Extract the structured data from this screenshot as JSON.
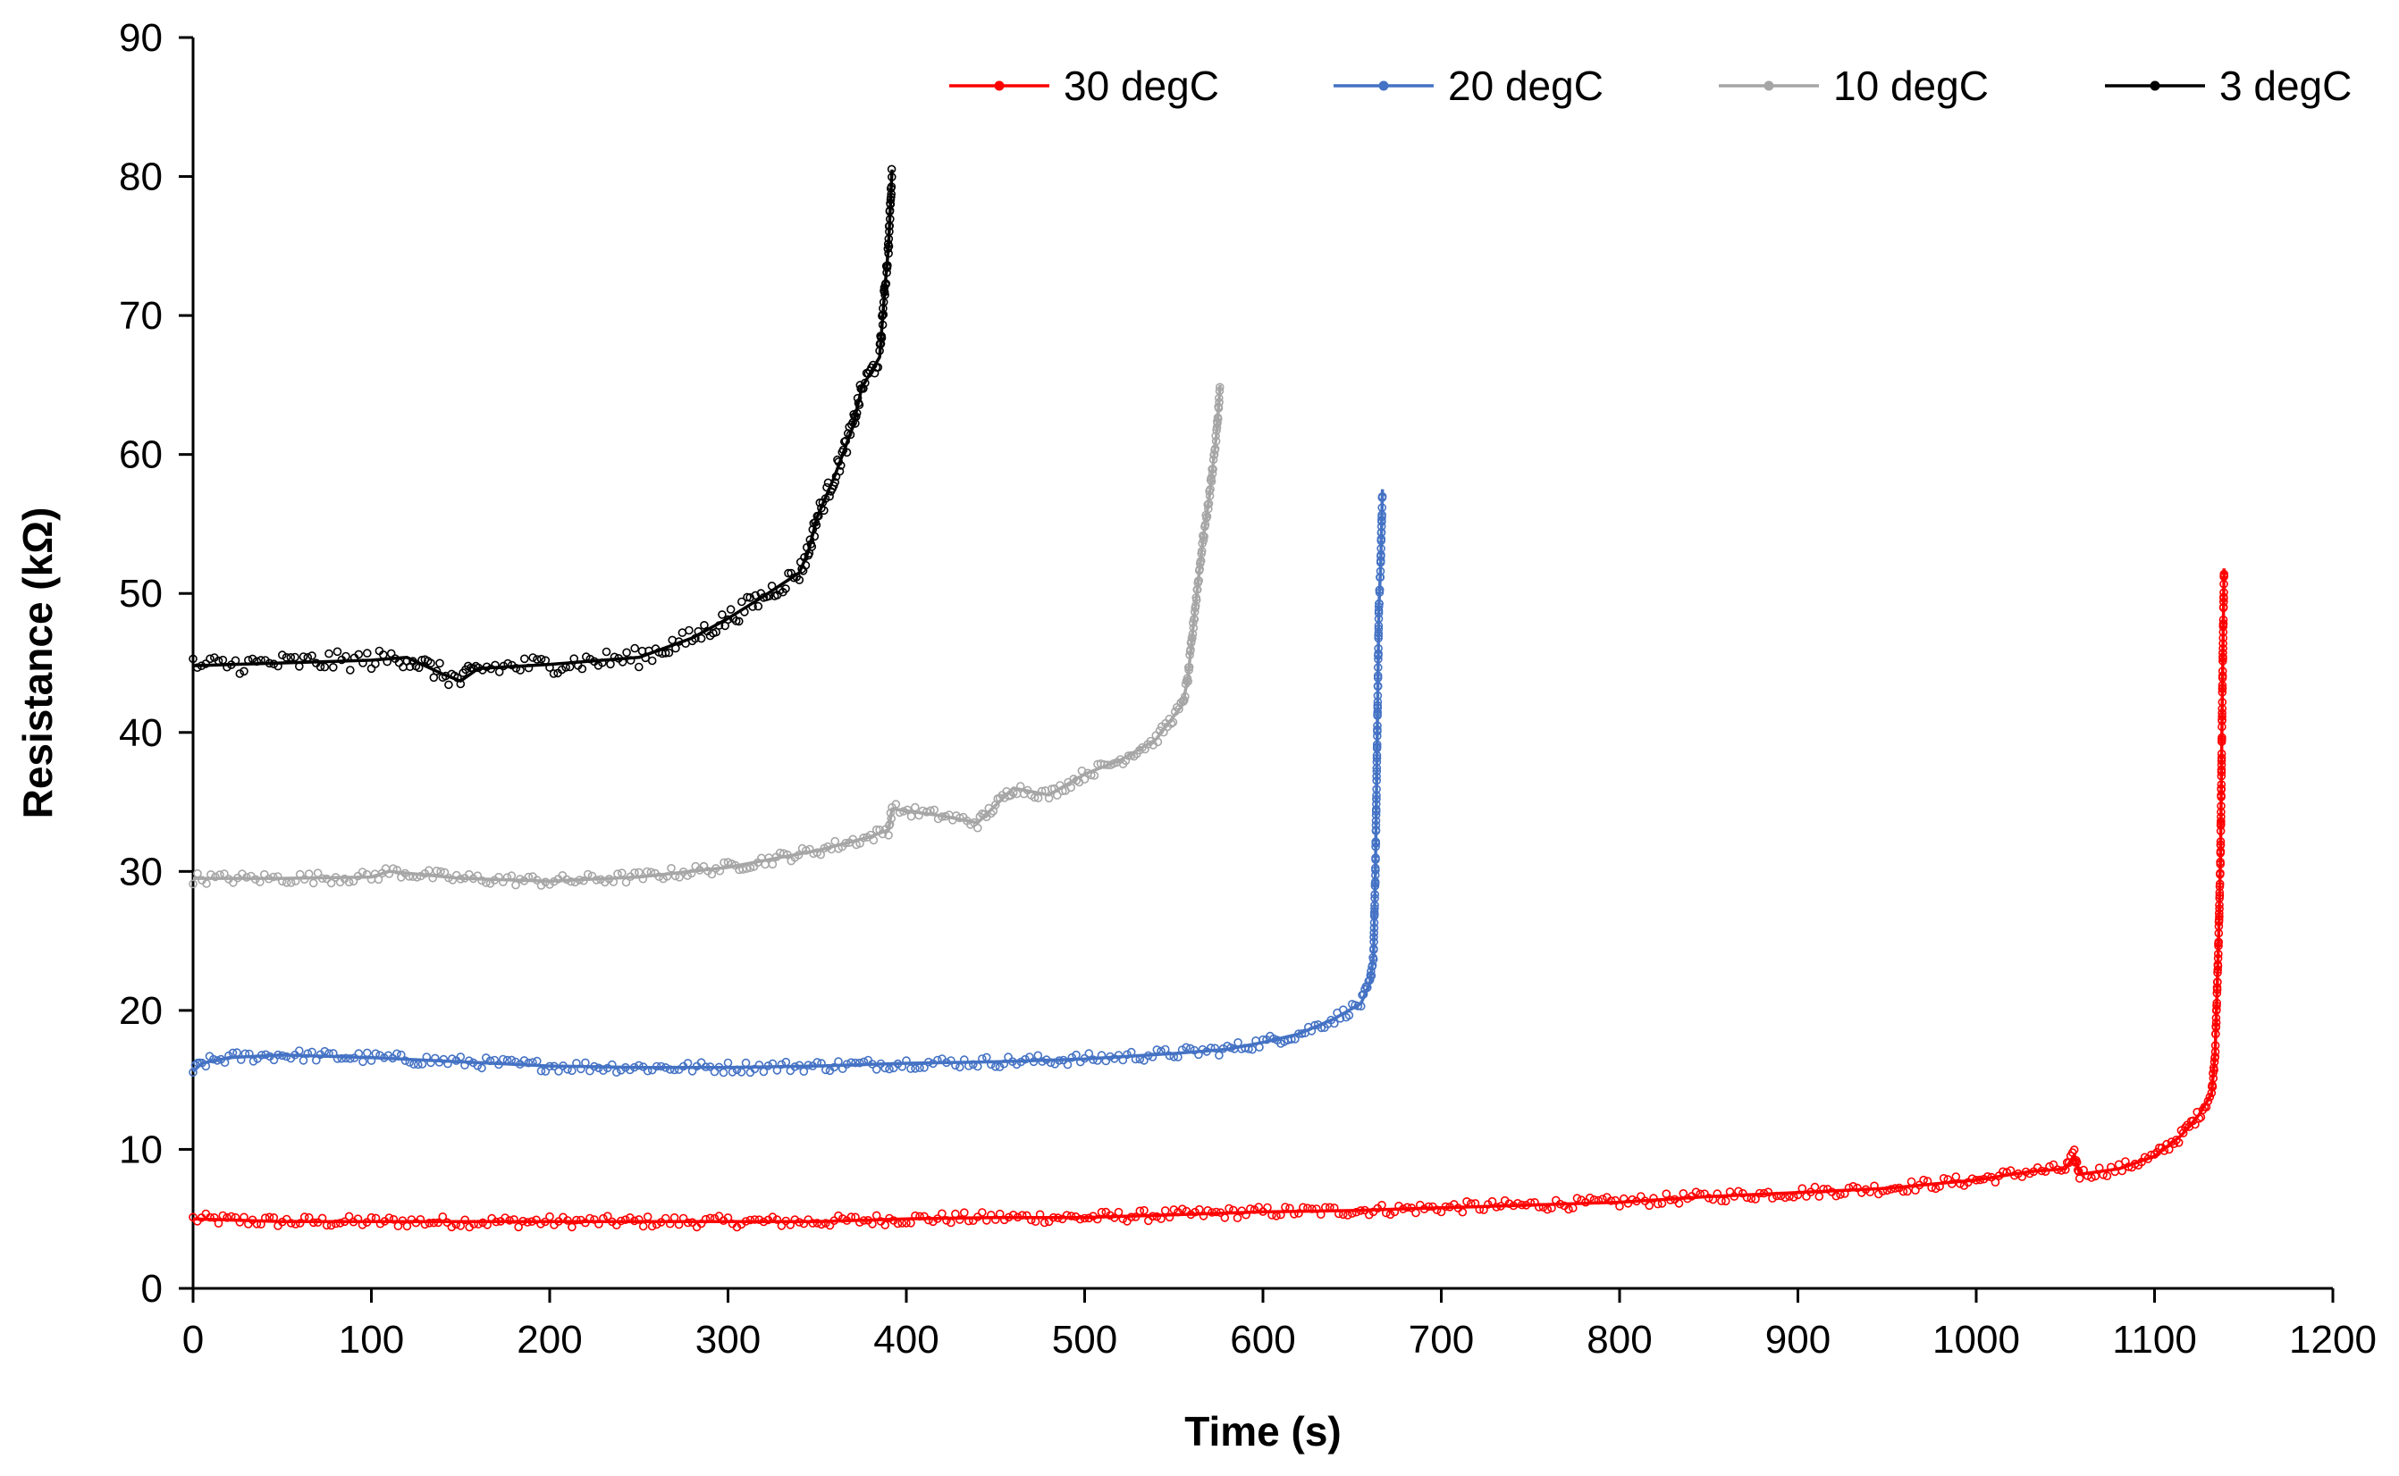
{
  "chart_data": {
    "type": "line",
    "title": "",
    "xlabel": "Time (s)",
    "ylabel": "Resistance (kΩ)",
    "xlim": [
      0,
      1200
    ],
    "ylim": [
      0,
      90
    ],
    "x_ticks": [
      "0",
      "100",
      "200",
      "300",
      "400",
      "500",
      "600",
      "700",
      "800",
      "900",
      "1000",
      "1100",
      "1200"
    ],
    "y_ticks": [
      "0",
      "10",
      "20",
      "30",
      "40",
      "50",
      "60",
      "70",
      "80",
      "90"
    ],
    "grid": false,
    "legend_position": "top-right",
    "series": [
      {
        "name": "30 degC",
        "color": "#ff0000",
        "points": [
          [
            0,
            5.0
          ],
          [
            50,
            4.8
          ],
          [
            100,
            4.8
          ],
          [
            150,
            4.8
          ],
          [
            200,
            4.8
          ],
          [
            250,
            4.8
          ],
          [
            300,
            4.8
          ],
          [
            350,
            4.8
          ],
          [
            400,
            5.0
          ],
          [
            450,
            5.1
          ],
          [
            500,
            5.1
          ],
          [
            550,
            5.3
          ],
          [
            600,
            5.5
          ],
          [
            650,
            5.6
          ],
          [
            700,
            5.8
          ],
          [
            750,
            6.0
          ],
          [
            800,
            6.2
          ],
          [
            850,
            6.6
          ],
          [
            900,
            6.9
          ],
          [
            950,
            7.2
          ],
          [
            1000,
            7.8
          ],
          [
            1030,
            8.4
          ],
          [
            1050,
            8.6
          ],
          [
            1055,
            9.6
          ],
          [
            1058,
            8.2
          ],
          [
            1080,
            8.6
          ],
          [
            1100,
            9.5
          ],
          [
            1115,
            11.0
          ],
          [
            1125,
            12.5
          ],
          [
            1132,
            14.0
          ],
          [
            1134,
            17.0
          ],
          [
            1135,
            21.0
          ],
          [
            1136,
            25.5
          ],
          [
            1137,
            31.0
          ],
          [
            1138,
            42.5
          ],
          [
            1139,
            51.8
          ]
        ]
      },
      {
        "name": "20 degC",
        "color": "#4472c4",
        "points": [
          [
            0,
            15.6
          ],
          [
            5,
            16.2
          ],
          [
            20,
            16.6
          ],
          [
            50,
            16.8
          ],
          [
            100,
            16.6
          ],
          [
            150,
            16.3
          ],
          [
            200,
            16.0
          ],
          [
            250,
            15.9
          ],
          [
            300,
            15.9
          ],
          [
            350,
            16.0
          ],
          [
            400,
            16.2
          ],
          [
            450,
            16.3
          ],
          [
            500,
            16.5
          ],
          [
            550,
            16.9
          ],
          [
            580,
            17.2
          ],
          [
            600,
            17.7
          ],
          [
            620,
            18.3
          ],
          [
            640,
            19.4
          ],
          [
            655,
            20.5
          ],
          [
            660,
            22.0
          ],
          [
            662,
            24.0
          ],
          [
            663,
            29.5
          ],
          [
            664,
            39.0
          ],
          [
            665,
            49.0
          ],
          [
            666,
            52.0
          ],
          [
            667,
            57.5
          ]
        ]
      },
      {
        "name": "10 degC",
        "color": "#a6a6a6",
        "points": [
          [
            0,
            29.5
          ],
          [
            50,
            29.5
          ],
          [
            100,
            29.6
          ],
          [
            110,
            30.0
          ],
          [
            150,
            29.5
          ],
          [
            200,
            29.3
          ],
          [
            250,
            29.6
          ],
          [
            300,
            30.3
          ],
          [
            350,
            31.5
          ],
          [
            380,
            32.5
          ],
          [
            390,
            33.0
          ],
          [
            392,
            34.5
          ],
          [
            420,
            34.0
          ],
          [
            440,
            33.5
          ],
          [
            460,
            36.0
          ],
          [
            480,
            35.5
          ],
          [
            500,
            37.0
          ],
          [
            520,
            38.0
          ],
          [
            540,
            39.5
          ],
          [
            555,
            42.0
          ],
          [
            558,
            44.0
          ],
          [
            562,
            49.0
          ],
          [
            566,
            53.5
          ],
          [
            570,
            57.0
          ],
          [
            574,
            61.5
          ],
          [
            576,
            65.0
          ]
        ]
      },
      {
        "name": "3 degC",
        "color": "#000000",
        "points": [
          [
            0,
            44.8
          ],
          [
            50,
            45.0
          ],
          [
            100,
            45.2
          ],
          [
            120,
            45.4
          ],
          [
            140,
            44.2
          ],
          [
            150,
            43.7
          ],
          [
            160,
            44.6
          ],
          [
            200,
            44.9
          ],
          [
            250,
            45.4
          ],
          [
            280,
            46.8
          ],
          [
            300,
            48.2
          ],
          [
            320,
            49.8
          ],
          [
            340,
            51.5
          ],
          [
            345,
            53.0
          ],
          [
            350,
            55.5
          ],
          [
            360,
            58.5
          ],
          [
            370,
            62.0
          ],
          [
            375,
            64.8
          ],
          [
            385,
            67.0
          ],
          [
            388,
            72.0
          ],
          [
            390,
            75.0
          ],
          [
            392,
            80.5
          ]
        ]
      }
    ]
  }
}
